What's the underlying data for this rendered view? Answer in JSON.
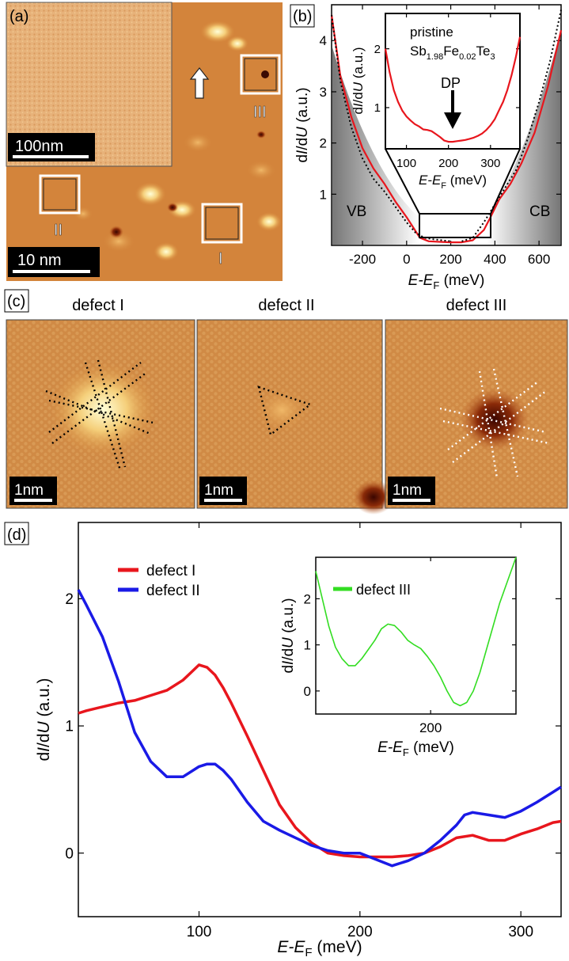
{
  "panel_labels": {
    "a": "(a)",
    "b": "(b)",
    "c": "(c)",
    "d": "(d)"
  },
  "panel_a": {
    "inset_scale": "100nm",
    "main_scale": "10 nm",
    "box_labels": [
      "III",
      "II",
      "I"
    ]
  },
  "panel_b": {
    "region_left": "VB",
    "region_right": "CB",
    "inset_title_line1": "pristine",
    "inset_formula": {
      "a": "Sb",
      "a_sub": "1.98",
      "b": "Fe",
      "b_sub": "0.02",
      "c": "Te",
      "c_sub": "3"
    },
    "dp_label": "DP"
  },
  "panel_c": {
    "titles": [
      "defect I",
      "defect II",
      "defect III"
    ],
    "scale": "1nm"
  },
  "chart_data": [
    {
      "type": "line",
      "panel": "b-main",
      "ylabel": "dI/dU (a.u.)",
      "xlabel": "E-E_F (meV)",
      "xlim": [
        -340,
        700
      ],
      "ylim": [
        0,
        4.7
      ],
      "xticks": [
        -200,
        0,
        200,
        400,
        600
      ],
      "yticks": [
        1,
        2,
        3,
        4
      ],
      "series": [
        {
          "style": "red-solid",
          "x": [
            -340,
            -300,
            -250,
            -200,
            -150,
            -100,
            -50,
            0,
            30,
            60,
            100,
            150,
            200,
            250,
            300,
            350,
            380,
            420,
            470,
            520,
            580,
            640,
            700
          ],
          "y": [
            4.5,
            3.3,
            2.5,
            1.9,
            1.5,
            1.2,
            0.85,
            0.55,
            0.35,
            0.15,
            0.08,
            0.07,
            0.06,
            0.06,
            0.1,
            0.3,
            0.55,
            0.9,
            1.2,
            1.6,
            2.2,
            3.1,
            4.2
          ]
        },
        {
          "style": "black-dotted",
          "x": [
            -340,
            -300,
            -250,
            -200,
            -150,
            -100,
            -50,
            0,
            40,
            80,
            120,
            160,
            200
          ],
          "y": [
            4.5,
            3.2,
            2.3,
            1.7,
            1.3,
            1.05,
            0.75,
            0.45,
            0.25,
            0.15,
            0.12,
            0.1,
            0.08
          ]
        },
        {
          "style": "black-dotted",
          "x": [
            250,
            300,
            350,
            400,
            450,
            500,
            550,
            600,
            650,
            700
          ],
          "y": [
            0.08,
            0.15,
            0.45,
            0.8,
            1.15,
            1.5,
            2.1,
            2.8,
            3.6,
            4.6
          ]
        }
      ]
    },
    {
      "type": "line",
      "panel": "b-inset",
      "ylabel": "dI/dU (a.u.)",
      "xlabel": "E-E_F (meV)",
      "xlim": [
        50,
        370
      ],
      "ylim": [
        0.3,
        2.6
      ],
      "xticks": [
        100,
        200,
        300
      ],
      "yticks": [
        1,
        2
      ],
      "series": [
        {
          "name": "pristine",
          "x": [
            50,
            60,
            70,
            80,
            90,
            100,
            110,
            120,
            130,
            140,
            150,
            160,
            170,
            180,
            190,
            200,
            210,
            220,
            230,
            240,
            250,
            260,
            270,
            280,
            290,
            300,
            310,
            320,
            330,
            340,
            350,
            360,
            370
          ],
          "y": [
            2.0,
            1.6,
            1.3,
            1.1,
            0.95,
            0.85,
            0.78,
            0.72,
            0.68,
            0.63,
            0.62,
            0.6,
            0.55,
            0.5,
            0.44,
            0.42,
            0.42,
            0.43,
            0.44,
            0.45,
            0.47,
            0.49,
            0.52,
            0.56,
            0.62,
            0.7,
            0.8,
            0.95,
            1.1,
            1.3,
            1.55,
            1.85,
            2.2
          ]
        }
      ]
    },
    {
      "type": "line",
      "panel": "d-main",
      "ylabel": "dI/dU (a.u.)",
      "xlabel": "E-E_F (meV)",
      "xlim": [
        25,
        325
      ],
      "ylim": [
        -0.5,
        2.6
      ],
      "xticks": [
        100,
        200,
        300
      ],
      "yticks": [
        0,
        1,
        2
      ],
      "series": [
        {
          "name": "defect I",
          "color": "#e8161d",
          "x": [
            25,
            30,
            40,
            50,
            60,
            70,
            80,
            90,
            95,
            100,
            105,
            110,
            115,
            120,
            130,
            140,
            150,
            160,
            170,
            180,
            190,
            200,
            210,
            220,
            230,
            240,
            250,
            260,
            270,
            280,
            290,
            300,
            310,
            320,
            325
          ],
          "y": [
            1.1,
            1.12,
            1.15,
            1.18,
            1.2,
            1.24,
            1.28,
            1.36,
            1.42,
            1.48,
            1.46,
            1.4,
            1.3,
            1.18,
            0.92,
            0.65,
            0.38,
            0.2,
            0.08,
            0.0,
            -0.02,
            -0.03,
            -0.03,
            -0.03,
            -0.02,
            0.0,
            0.05,
            0.12,
            0.14,
            0.1,
            0.1,
            0.15,
            0.19,
            0.24,
            0.25
          ]
        },
        {
          "name": "defect II",
          "color": "#1a1ae6",
          "x": [
            25,
            30,
            40,
            50,
            60,
            70,
            80,
            90,
            100,
            105,
            110,
            115,
            120,
            130,
            140,
            150,
            160,
            170,
            180,
            190,
            200,
            210,
            220,
            230,
            240,
            250,
            260,
            265,
            270,
            280,
            290,
            300,
            310,
            320,
            325
          ],
          "y": [
            2.07,
            1.95,
            1.7,
            1.35,
            0.95,
            0.72,
            0.6,
            0.6,
            0.68,
            0.7,
            0.7,
            0.65,
            0.58,
            0.4,
            0.25,
            0.18,
            0.12,
            0.06,
            0.02,
            0.0,
            0.0,
            -0.05,
            -0.1,
            -0.06,
            0.0,
            0.1,
            0.22,
            0.3,
            0.32,
            0.3,
            0.28,
            0.33,
            0.4,
            0.48,
            0.52
          ]
        }
      ]
    },
    {
      "type": "line",
      "panel": "d-inset",
      "ylabel": "dI/dU (a.u.)",
      "xlabel": "E-E_F (meV)",
      "xlim": [
        25,
        330
      ],
      "ylim": [
        -0.5,
        2.9
      ],
      "xticks": [
        200
      ],
      "yticks": [
        0,
        1,
        2
      ],
      "series": [
        {
          "name": "defect III",
          "color": "#33dd22",
          "x": [
            25,
            35,
            45,
            55,
            65,
            75,
            85,
            95,
            105,
            115,
            125,
            135,
            145,
            155,
            165,
            175,
            185,
            195,
            205,
            215,
            225,
            235,
            245,
            255,
            265,
            275,
            285,
            295,
            305,
            315,
            325,
            330
          ],
          "y": [
            2.6,
            2.0,
            1.4,
            0.95,
            0.7,
            0.55,
            0.55,
            0.7,
            0.9,
            1.1,
            1.35,
            1.45,
            1.42,
            1.28,
            1.1,
            1.0,
            0.92,
            0.75,
            0.55,
            0.3,
            0.0,
            -0.25,
            -0.32,
            -0.25,
            0.0,
            0.4,
            0.9,
            1.4,
            1.9,
            2.3,
            2.7,
            2.9
          ]
        }
      ]
    }
  ]
}
